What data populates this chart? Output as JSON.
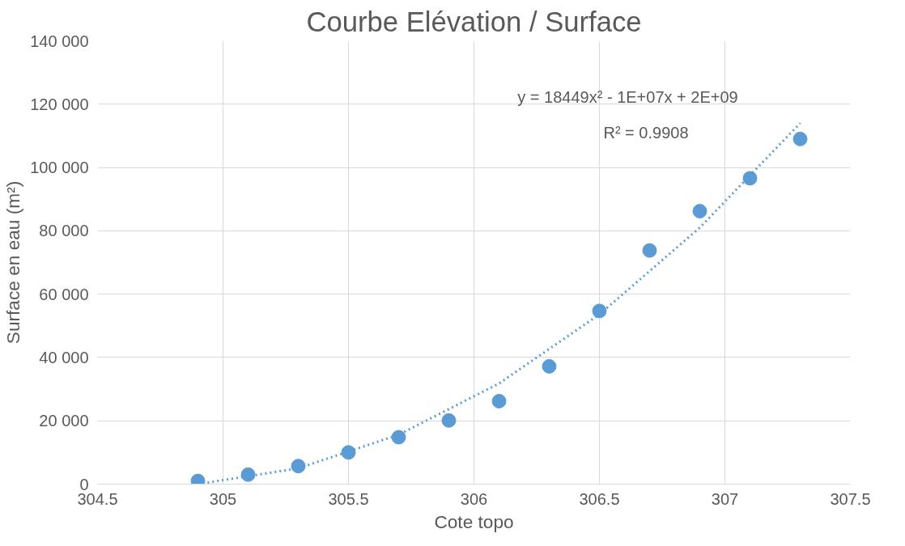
{
  "chart_data": {
    "type": "scatter",
    "title": "Courbe Elévation / Surface",
    "xlabel": "Cote topo",
    "ylabel": "Surface en eau (m²)",
    "xlim": [
      304.5,
      307.5
    ],
    "xticks": [
      304.5,
      305,
      305.5,
      306,
      306.5,
      307,
      307.5
    ],
    "ylim": [
      0,
      140000
    ],
    "yticks": [
      {
        "value": 0,
        "label": "0"
      },
      {
        "value": 20000,
        "label": "20 000"
      },
      {
        "value": 40000,
        "label": "40 000"
      },
      {
        "value": 60000,
        "label": "60 000"
      },
      {
        "value": 80000,
        "label": "80 000"
      },
      {
        "value": 100000,
        "label": "100 000"
      },
      {
        "value": 120000,
        "label": "120 000"
      },
      {
        "value": 140000,
        "label": "140 000"
      }
    ],
    "grid": true,
    "series": [
      {
        "marker": "circle",
        "color": "#5b9bd5",
        "x": [
          304.9,
          305.1,
          305.3,
          305.5,
          305.7,
          305.9,
          306.1,
          306.3,
          306.5,
          306.7,
          306.9,
          307.1,
          307.3
        ],
        "values": [
          1000,
          3000,
          5700,
          10000,
          14800,
          20100,
          26200,
          37200,
          54700,
          73800,
          86200,
          96600,
          109000
        ]
      },
      {
        "type": "line",
        "marker": "none",
        "line_style": "dotted",
        "color": "#5b9bd5",
        "x": [
          304.9,
          305.3,
          305.7,
          306.1,
          306.5,
          306.9,
          307.3
        ],
        "values": [
          0,
          5000,
          15600,
          31800,
          53600,
          81000,
          114000
        ]
      }
    ],
    "annotations": [
      "y = 18449x² - 1E+07x + 2E+09",
      "R² = 0.9908"
    ]
  }
}
